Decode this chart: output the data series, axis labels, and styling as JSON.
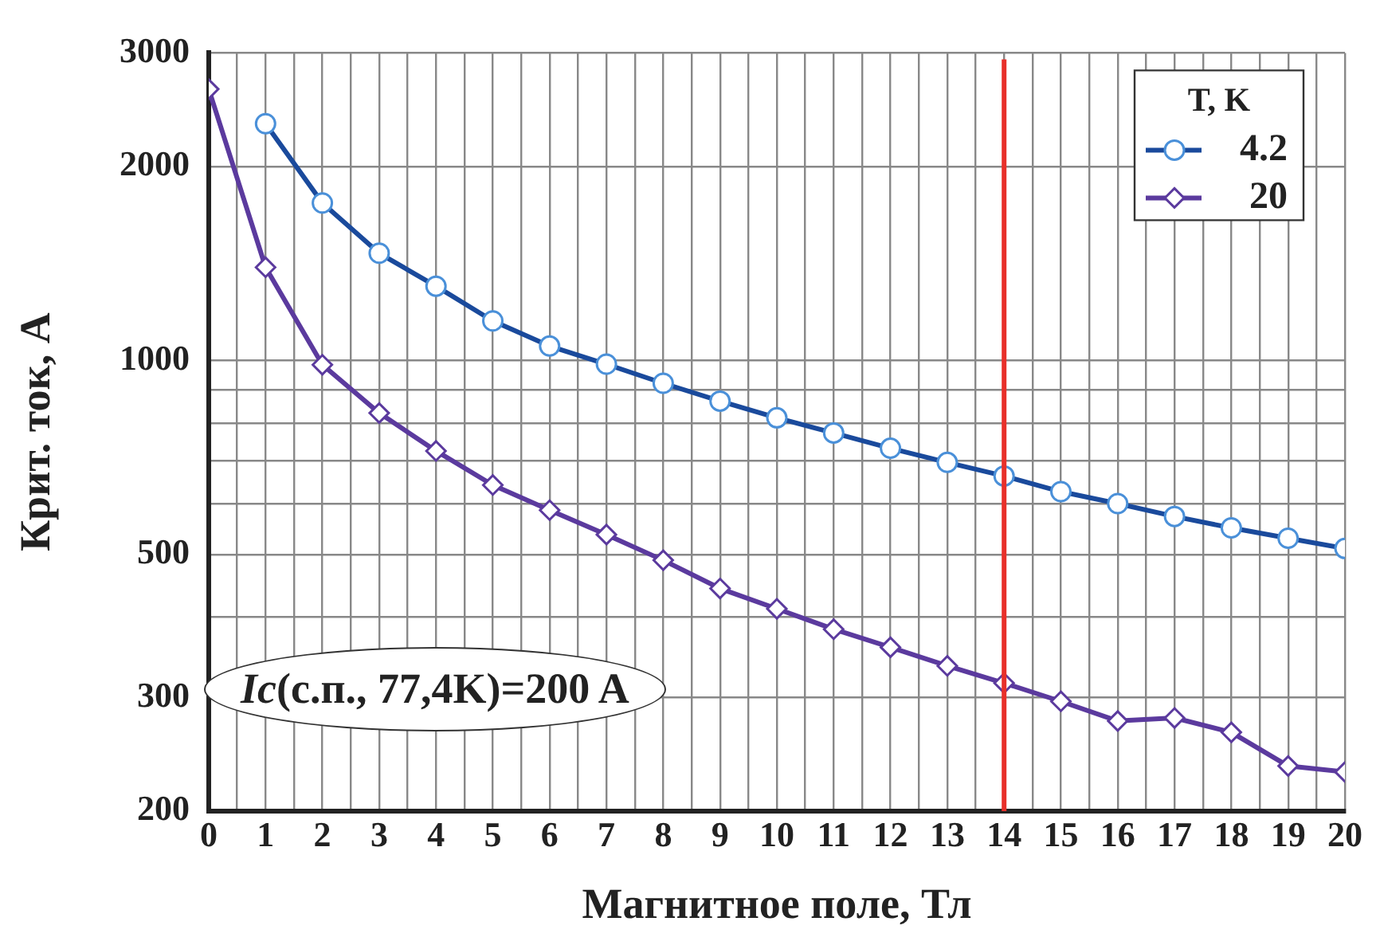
{
  "chart_data": {
    "type": "line",
    "xlabel": "Магнитное поле, Тл",
    "ylabel": "Крит. ток, А",
    "legend_title": "T, K",
    "legend": "top right",
    "grid": true,
    "log": "y",
    "xlim": [
      0,
      20
    ],
    "ylim": [
      200,
      3000
    ],
    "xticks": [
      0,
      {
        "value": 0.5,
        "label": null
      },
      1,
      {
        "value": 1.5,
        "label": null
      },
      2,
      {
        "value": 2.5,
        "label": null
      },
      3,
      {
        "value": 3.5,
        "label": null
      },
      4,
      {
        "value": 4.5,
        "label": null
      },
      5,
      {
        "value": 5.5,
        "label": null
      },
      6,
      {
        "value": 6.5,
        "label": null
      },
      7,
      {
        "value": 7.5,
        "label": null
      },
      8,
      {
        "value": 8.5,
        "label": null
      },
      9,
      {
        "value": 9.5,
        "label": null
      },
      10,
      {
        "value": 10.5,
        "label": null
      },
      11,
      {
        "value": 11.5,
        "label": null
      },
      12,
      {
        "value": 12.5,
        "label": null
      },
      13,
      {
        "value": 13.5,
        "label": null
      },
      14,
      {
        "value": 14.5,
        "label": null
      },
      15,
      {
        "value": 15.5,
        "label": null
      },
      16,
      {
        "value": 16.5,
        "label": null
      },
      17,
      {
        "value": 17.5,
        "label": null
      },
      18,
      {
        "value": 18.5,
        "label": null
      },
      19,
      {
        "value": 19.5,
        "label": null
      },
      20
    ],
    "yticks": [
      200,
      300,
      {
        "value": 400,
        "label": null
      },
      500,
      {
        "value": 600,
        "label": null
      },
      {
        "value": 700,
        "label": null
      },
      {
        "value": 800,
        "label": null
      },
      {
        "value": 900,
        "label": null
      },
      1000,
      2000,
      3000
    ],
    "series": [
      {
        "name": "4.2",
        "color": "#1a4a9c",
        "marker": "circle",
        "x": [
          1,
          2,
          3,
          4,
          5,
          6,
          7,
          8,
          9,
          10,
          11,
          12,
          13,
          14,
          15,
          16,
          17,
          18,
          19,
          20
        ],
        "values": [
          2330,
          1755,
          1467,
          1304,
          1152,
          1053,
          987,
          922,
          865,
          815,
          772,
          731,
          695,
          662,
          626,
          600,
          573,
          550,
          530,
          511
        ]
      },
      {
        "name": "20",
        "color": "#5b3a9e",
        "marker": "diamond",
        "x": [
          0,
          1,
          2,
          3,
          4,
          5,
          6,
          7,
          8,
          9,
          10,
          11,
          12,
          13,
          14,
          15,
          16,
          17,
          18,
          19,
          20
        ],
        "values": [
          2636,
          1395,
          985,
          829,
          724,
          641,
          586,
          537,
          490,
          443,
          412,
          383,
          359,
          336,
          316,
          296,
          276,
          279,
          265,
          235,
          230
        ]
      }
    ],
    "ref_lines": [
      {
        "axis": "x",
        "value": 14,
        "color": "#e8302a"
      }
    ],
    "annotations": [
      "Ic(с.п., 77,4K)=200 A"
    ]
  }
}
